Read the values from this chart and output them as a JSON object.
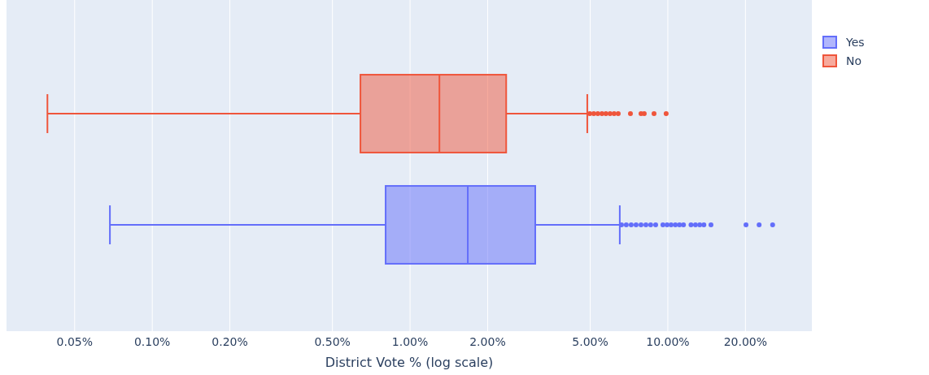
{
  "chart_data": {
    "type": "box",
    "orientation": "horizontal",
    "xlabel": "District Vote % (log scale)",
    "log": "x",
    "grid": "x",
    "legend": "top right",
    "marker": "circle",
    "categories": [
      null,
      null
    ],
    "xlim": [
      0.0272,
      36.2
    ],
    "xticks": [
      {
        "value": 0.05,
        "label": "0.05%"
      },
      {
        "value": 0.1,
        "label": "0.10%"
      },
      {
        "value": 0.2,
        "label": "0.20%"
      },
      {
        "value": 0.5,
        "label": "0.50%"
      },
      {
        "value": 1,
        "label": "1.00%"
      },
      {
        "value": 2,
        "label": "2.00%"
      },
      {
        "value": 5,
        "label": "5.00%"
      },
      {
        "value": 10,
        "label": "10.00%"
      },
      {
        "value": 20,
        "label": "20.00%"
      }
    ],
    "series": [
      {
        "name": "Yes",
        "color": "#636efa",
        "boxes": [
          null,
          {
            "low": 0.0685,
            "q1": 0.804,
            "median": 1.675,
            "q3": 3.06,
            "high": 6.51,
            "outliers": [
              6.61,
              6.9,
              7.21,
              7.53,
              7.87,
              8.22,
              8.58,
              8.97,
              9.57,
              9.93,
              10.3,
              10.7,
              11.1,
              11.5,
              12.3,
              12.8,
              13.3,
              13.8,
              14.7,
              20.1,
              22.6,
              25.5
            ]
          }
        ]
      },
      {
        "name": "No",
        "color": "#ef553b",
        "boxes": [
          {
            "low": 0.0392,
            "q1": 0.642,
            "median": 1.3,
            "q3": 2.36,
            "high": 4.87,
            "outliers": [
              4.98,
              5.16,
              5.35,
              5.55,
              5.75,
              5.97,
              6.19,
              6.42,
              7.16,
              7.87,
              8.1,
              8.84,
              9.85
            ]
          },
          null
        ]
      }
    ]
  }
}
